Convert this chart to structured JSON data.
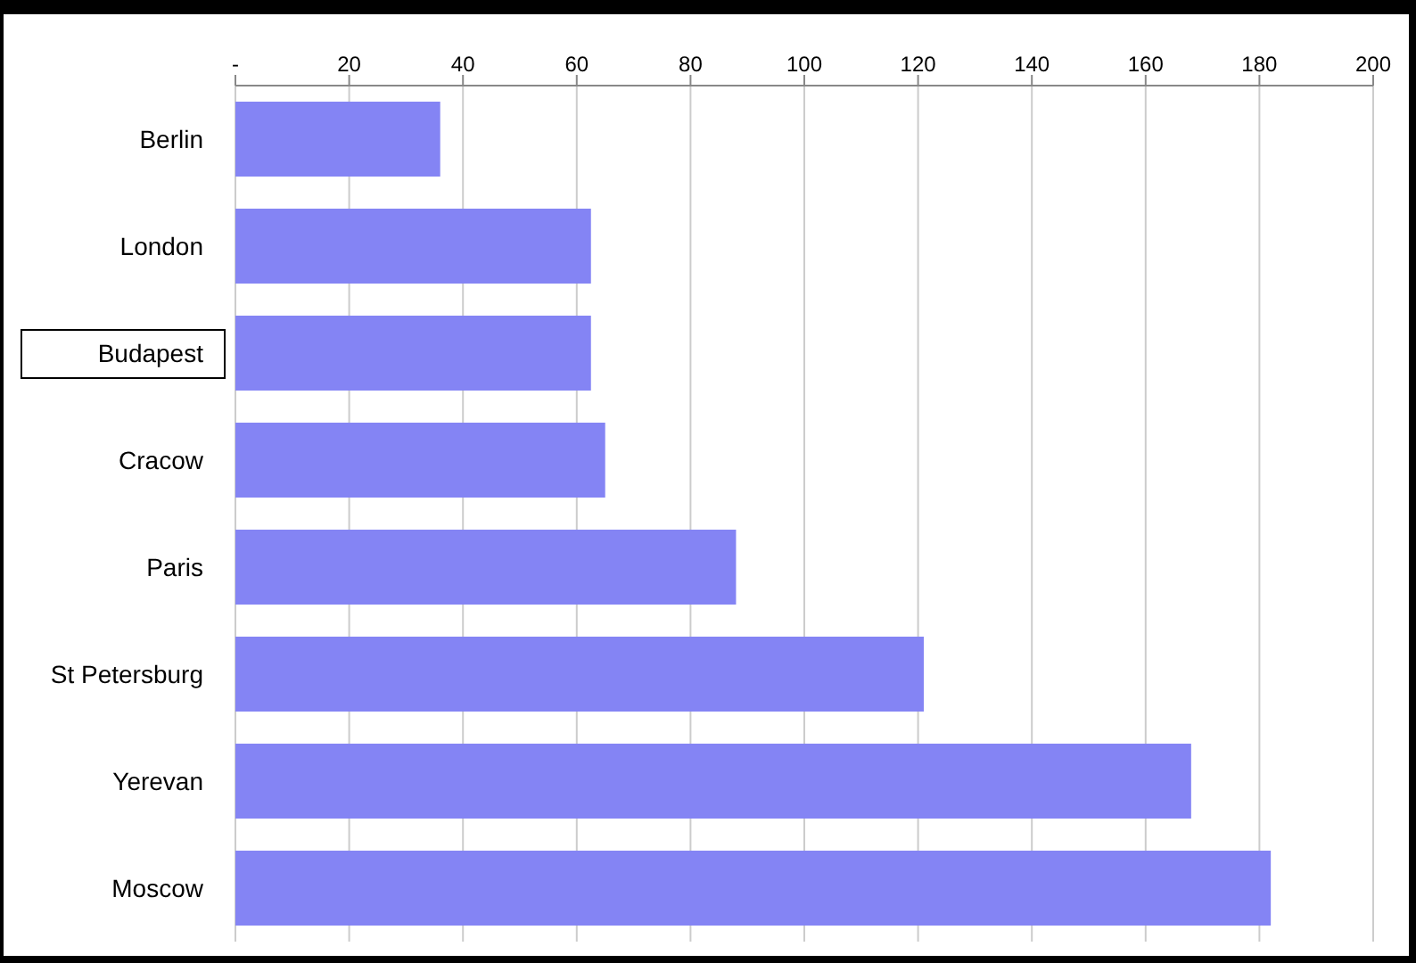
{
  "chart_data": {
    "type": "bar",
    "orientation": "horizontal",
    "categories": [
      "Berlin",
      "London",
      "Budapest",
      "Cracow",
      "Paris",
      "St Petersburg",
      "Yerevan",
      "Moscow"
    ],
    "values": [
      36,
      62.5,
      62.5,
      65,
      88,
      121,
      168,
      182
    ],
    "color": "#8484f4",
    "xlim": [
      0,
      200
    ],
    "xticks": [
      {
        "value": 0,
        "label": "-"
      },
      20,
      40,
      60,
      80,
      100,
      120,
      140,
      160,
      180,
      200
    ],
    "grid": "x"
  }
}
